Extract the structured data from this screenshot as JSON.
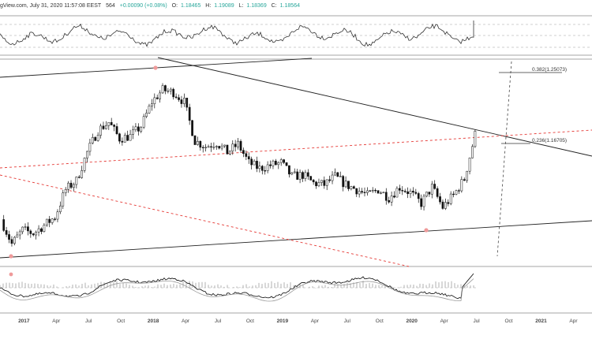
{
  "header": {
    "source": "gView.com, July 31, 2020 11:57:08 EEST",
    "symbol_fragment": "564",
    "change": "+0.00090 (+0.08%)",
    "open_label": "O:",
    "open": "1.18465",
    "high_label": "H:",
    "high": "1.19089",
    "low_label": "L:",
    "low": "1.18369",
    "close_label": "C:",
    "close": "1.18564"
  },
  "colors": {
    "candle": "#111111",
    "trendline": "#222222",
    "dashed_red": "#e53935",
    "pivot_marker": "#ef9a9a",
    "fib": "#333333",
    "oscillator": "#333333",
    "grid_dash": "#bdbdbd"
  },
  "fib_labels": [
    "0.382(1.25073)",
    "0.236(1.16705)"
  ],
  "chart_data": {
    "type": "line",
    "title": "",
    "xlabel": "",
    "ylabel": "",
    "x_ticks": [
      "2017",
      "Apr",
      "Jul",
      "Oct",
      "2018",
      "Apr",
      "Jul",
      "Oct",
      "2019",
      "Apr",
      "Jul",
      "Oct",
      "2020",
      "Apr",
      "Jul",
      "Oct",
      "2021",
      "Apr",
      "Jul"
    ],
    "x_range": [
      "2016-11",
      "2021-08"
    ],
    "y_range": [
      1.02,
      1.27
    ],
    "legend": "none",
    "series": [
      {
        "x": [
          "2016-11",
          "2016-12",
          "2017-01",
          "2017-02",
          "2017-03",
          "2017-04",
          "2017-05",
          "2017-06",
          "2017-07",
          "2017-08",
          "2017-09",
          "2017-10",
          "2017-11",
          "2017-12",
          "2018-01",
          "2018-02",
          "2018-03",
          "2018-04",
          "2018-05",
          "2018-06",
          "2018-07",
          "2018-08",
          "2018-09",
          "2018-10",
          "2018-11",
          "2018-12",
          "2019-01",
          "2019-02",
          "2019-03",
          "2019-04",
          "2019-05",
          "2019-06",
          "2019-07",
          "2019-08",
          "2019-09",
          "2019-10",
          "2019-11",
          "2019-12",
          "2020-01",
          "2020-02",
          "2020-03",
          "2020-04",
          "2020-05",
          "2020-06",
          "2020-07"
        ],
        "values": [
          1.075,
          1.045,
          1.062,
          1.058,
          1.068,
          1.078,
          1.112,
          1.123,
          1.158,
          1.185,
          1.195,
          1.175,
          1.178,
          1.19,
          1.22,
          1.235,
          1.232,
          1.22,
          1.172,
          1.165,
          1.17,
          1.158,
          1.168,
          1.145,
          1.138,
          1.142,
          1.145,
          1.128,
          1.13,
          1.12,
          1.118,
          1.128,
          1.118,
          1.112,
          1.105,
          1.112,
          1.102,
          1.115,
          1.108,
          1.095,
          1.115,
          1.09,
          1.105,
          1.125,
          1.18
        ]
      }
    ],
    "annotations": [
      "0.382(1.25073)",
      "0.236(1.16705)"
    ]
  }
}
